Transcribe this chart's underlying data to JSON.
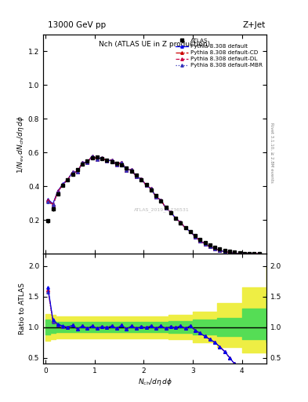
{
  "title_left": "13000 GeV pp",
  "title_right": "Z+Jet",
  "plot_title": "Nch (ATLAS UE in Z production)",
  "ylabel_main": "1/N_{ev} dN_{ch}/d\\eta d\\phi",
  "ylabel_ratio": "Ratio to ATLAS",
  "xlabel": "N_{ch}/d\\eta d\\phi",
  "right_label": "Rivet 3.1.10, ≥ 2.8M events",
  "watermark": "ATLAS_2019_I1736531",
  "ylim_main": [
    0.0,
    1.3
  ],
  "ylim_ratio": [
    0.4,
    2.2
  ],
  "yticks_main": [
    0.2,
    0.4,
    0.6,
    0.8,
    1.0,
    1.2
  ],
  "yticks_ratio": [
    0.5,
    1.0,
    1.5,
    2.0
  ],
  "xlim": [
    -0.05,
    4.5
  ],
  "xticks": [
    0,
    1,
    2,
    3,
    4
  ],
  "atlas_x": [
    0.05,
    0.15,
    0.25,
    0.35,
    0.45,
    0.55,
    0.65,
    0.75,
    0.85,
    0.95,
    1.05,
    1.15,
    1.25,
    1.35,
    1.45,
    1.55,
    1.65,
    1.75,
    1.85,
    1.95,
    2.05,
    2.15,
    2.25,
    2.35,
    2.45,
    2.55,
    2.65,
    2.75,
    2.85,
    2.95,
    3.05,
    3.15,
    3.25,
    3.35,
    3.45,
    3.55,
    3.65,
    3.75,
    3.85,
    3.95,
    4.05,
    4.15,
    4.25,
    4.35
  ],
  "atlas_y": [
    0.195,
    0.265,
    0.355,
    0.405,
    0.44,
    0.47,
    0.5,
    0.53,
    0.552,
    0.568,
    0.572,
    0.565,
    0.555,
    0.545,
    0.537,
    0.527,
    0.51,
    0.49,
    0.465,
    0.44,
    0.41,
    0.378,
    0.345,
    0.312,
    0.278,
    0.245,
    0.213,
    0.183,
    0.156,
    0.13,
    0.107,
    0.087,
    0.069,
    0.054,
    0.041,
    0.031,
    0.022,
    0.015,
    0.01,
    0.007,
    0.004,
    0.003,
    0.002,
    0.001
  ],
  "atlas_yerr": [
    0.012,
    0.01,
    0.008,
    0.007,
    0.006,
    0.006,
    0.005,
    0.005,
    0.005,
    0.005,
    0.005,
    0.005,
    0.005,
    0.005,
    0.005,
    0.005,
    0.005,
    0.004,
    0.004,
    0.004,
    0.004,
    0.004,
    0.003,
    0.003,
    0.003,
    0.003,
    0.003,
    0.003,
    0.002,
    0.002,
    0.002,
    0.002,
    0.002,
    0.002,
    0.001,
    0.001,
    0.001,
    0.001,
    0.001,
    0.001,
    0.0005,
    0.0005,
    0.0003,
    0.0003
  ],
  "ratio_default": [
    1.65,
    1.12,
    1.05,
    1.02,
    1.0,
    1.03,
    0.97,
    1.02,
    0.98,
    1.02,
    0.98,
    1.01,
    0.99,
    1.02,
    0.98,
    1.03,
    0.97,
    1.02,
    0.98,
    1.01,
    0.99,
    1.02,
    0.98,
    1.02,
    0.98,
    1.01,
    0.99,
    1.02,
    0.98,
    1.02,
    0.95,
    0.9,
    0.85,
    0.8,
    0.75,
    0.68,
    0.6,
    0.5,
    0.4,
    0.33,
    0.27,
    0.22,
    0.18,
    0.15
  ],
  "ratio_cd": [
    1.62,
    1.1,
    1.04,
    1.01,
    1.0,
    1.03,
    0.97,
    1.02,
    0.98,
    1.02,
    0.98,
    1.01,
    0.99,
    1.02,
    0.98,
    1.03,
    0.97,
    1.02,
    0.98,
    1.01,
    0.99,
    1.02,
    0.98,
    1.02,
    0.98,
    1.01,
    0.99,
    1.02,
    0.98,
    1.02,
    0.95,
    0.9,
    0.85,
    0.8,
    0.75,
    0.68,
    0.6,
    0.5,
    0.4,
    0.33,
    0.27,
    0.22,
    0.18,
    0.15
  ],
  "ratio_dl": [
    1.6,
    1.1,
    1.04,
    1.01,
    1.0,
    1.03,
    0.97,
    1.02,
    0.98,
    1.02,
    0.98,
    1.01,
    0.99,
    1.02,
    0.98,
    1.03,
    0.97,
    1.02,
    0.98,
    1.01,
    0.99,
    1.02,
    0.98,
    1.02,
    0.98,
    1.01,
    0.99,
    1.02,
    0.98,
    1.02,
    0.95,
    0.9,
    0.85,
    0.8,
    0.75,
    0.68,
    0.6,
    0.5,
    0.4,
    0.33,
    0.27,
    0.22,
    0.18,
    0.15
  ],
  "ratio_mbr": [
    1.58,
    1.09,
    1.03,
    1.01,
    1.0,
    1.03,
    0.97,
    1.02,
    0.98,
    1.02,
    0.98,
    1.01,
    0.99,
    1.02,
    0.98,
    1.03,
    0.97,
    1.02,
    0.98,
    1.01,
    0.99,
    1.02,
    0.98,
    1.02,
    0.98,
    1.01,
    0.99,
    1.02,
    0.98,
    1.02,
    0.95,
    0.9,
    0.85,
    0.8,
    0.75,
    0.68,
    0.6,
    0.5,
    0.4,
    0.33,
    0.27,
    0.22,
    0.18,
    0.15
  ],
  "band_x": [
    0.0,
    0.1,
    0.2,
    0.5,
    1.0,
    1.5,
    2.0,
    2.5,
    3.0,
    3.5,
    4.0,
    4.5
  ],
  "green_lo": [
    0.88,
    0.9,
    0.92,
    0.92,
    0.92,
    0.92,
    0.92,
    0.9,
    0.88,
    0.85,
    0.8,
    0.75
  ],
  "green_hi": [
    1.12,
    1.1,
    1.08,
    1.08,
    1.08,
    1.08,
    1.08,
    1.1,
    1.12,
    1.15,
    1.3,
    1.55
  ],
  "yellow_lo": [
    0.78,
    0.8,
    0.82,
    0.82,
    0.82,
    0.82,
    0.82,
    0.8,
    0.75,
    0.68,
    0.58,
    0.48
  ],
  "yellow_hi": [
    1.22,
    1.2,
    1.18,
    1.18,
    1.18,
    1.18,
    1.18,
    1.2,
    1.25,
    1.4,
    1.65,
    2.0
  ],
  "color_default": "#0000ee",
  "color_cd": "#cc0000",
  "color_dl": "#cc0044",
  "color_mbr": "#3333bb",
  "color_atlas": "#000000",
  "color_green": "#55dd55",
  "color_yellow": "#eeee44",
  "legend_entries": [
    "ATLAS",
    "Pythia 8.308 default",
    "Pythia 8.308 default-CD",
    "Pythia 8.308 default-DL",
    "Pythia 8.308 default-MBR"
  ]
}
